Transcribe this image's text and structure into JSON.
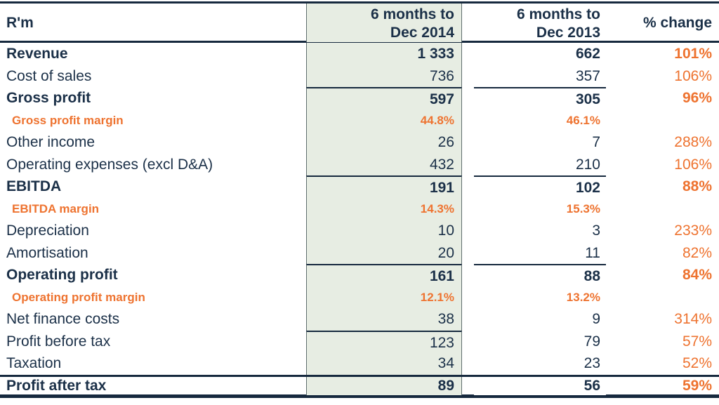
{
  "header": {
    "unit": "R'm",
    "col_2014_line1": "6 months to",
    "col_2014_line2": "Dec 2014",
    "col_2013_line1": "6 months to",
    "col_2013_line2": "Dec 2013",
    "col_change": "% change"
  },
  "rows": [
    {
      "label": "Revenue",
      "v2014": "1 333",
      "v2013": "662",
      "change": "101%",
      "style": "total",
      "rule_green": false,
      "rule_2013": false,
      "rule_full": false,
      "highlight_2013": false
    },
    {
      "label": "Cost of sales",
      "v2014": "736",
      "v2013": "357",
      "change": "106%",
      "style": "normal",
      "rule_green": false,
      "rule_2013": false,
      "rule_full": false,
      "highlight_2013": false
    },
    {
      "label": "Gross profit",
      "v2014": "597",
      "v2013": "305",
      "change": "96%",
      "style": "total",
      "rule_green": true,
      "rule_2013": true,
      "rule_full": false,
      "highlight_2013": false
    },
    {
      "label": "Gross profit margin",
      "v2014": "44.8%",
      "v2013": "46.1%",
      "change": "",
      "style": "margin",
      "rule_green": false,
      "rule_2013": false,
      "rule_full": false,
      "highlight_2013": false
    },
    {
      "label": "Other income",
      "v2014": "26",
      "v2013": "7",
      "change": "288%",
      "style": "normal",
      "rule_green": false,
      "rule_2013": false,
      "rule_full": false,
      "highlight_2013": false
    },
    {
      "label": "Operating expenses (excl D&A)",
      "v2014": "432",
      "v2013": "210",
      "change": "106%",
      "style": "normal",
      "rule_green": false,
      "rule_2013": false,
      "rule_full": false,
      "highlight_2013": false
    },
    {
      "label": "EBITDA",
      "v2014": "191",
      "v2013": "102",
      "change": "88%",
      "style": "total",
      "rule_green": true,
      "rule_2013": true,
      "rule_full": false,
      "highlight_2013": false
    },
    {
      "label": "EBITDA margin",
      "v2014": "14.3%",
      "v2013": "15.3%",
      "change": "",
      "style": "margin",
      "rule_green": false,
      "rule_2013": false,
      "rule_full": false,
      "highlight_2013": false
    },
    {
      "label": "Depreciation",
      "v2014": "10",
      "v2013": "3",
      "change": "233%",
      "style": "normal",
      "rule_green": false,
      "rule_2013": false,
      "rule_full": false,
      "highlight_2013": false
    },
    {
      "label": "Amortisation",
      "v2014": "20",
      "v2013": "11",
      "change": "82%",
      "style": "normal",
      "rule_green": false,
      "rule_2013": false,
      "rule_full": false,
      "highlight_2013": false
    },
    {
      "label": "Operating profit",
      "v2014": "161",
      "v2013": "88",
      "change": "84%",
      "style": "total",
      "rule_green": true,
      "rule_2013": true,
      "rule_full": false,
      "highlight_2013": false
    },
    {
      "label": "Operating profit margin",
      "v2014": "12.1%",
      "v2013": "13.2%",
      "change": "",
      "style": "margin",
      "rule_green": false,
      "rule_2013": false,
      "rule_full": false,
      "highlight_2013": false
    },
    {
      "label": "Net finance costs",
      "v2014": "38",
      "v2013": "9",
      "change": "314%",
      "style": "normal",
      "rule_green": false,
      "rule_2013": false,
      "rule_full": false,
      "highlight_2013": false
    },
    {
      "label": "Profit before tax",
      "v2014": "123",
      "v2013": "79",
      "change": "57%",
      "style": "normal",
      "rule_green": true,
      "rule_2013": false,
      "rule_full": false,
      "highlight_2013": false
    },
    {
      "label": "Taxation",
      "v2014": "34",
      "v2013": "23",
      "change": "52%",
      "style": "normal",
      "rule_green": false,
      "rule_2013": false,
      "rule_full": false,
      "highlight_2013": false
    },
    {
      "label": "Profit after tax",
      "v2014": "89",
      "v2013": "56",
      "change": "59%",
      "style": "total",
      "rule_green": false,
      "rule_2013": false,
      "rule_full": true,
      "highlight_2013": true
    }
  ],
  "colors": {
    "navy_text": "#1b3048",
    "navy_line": "#16293e",
    "orange": "#ee7330",
    "green_column": "#e7ede3",
    "highlight_cell": "#ffffff"
  }
}
